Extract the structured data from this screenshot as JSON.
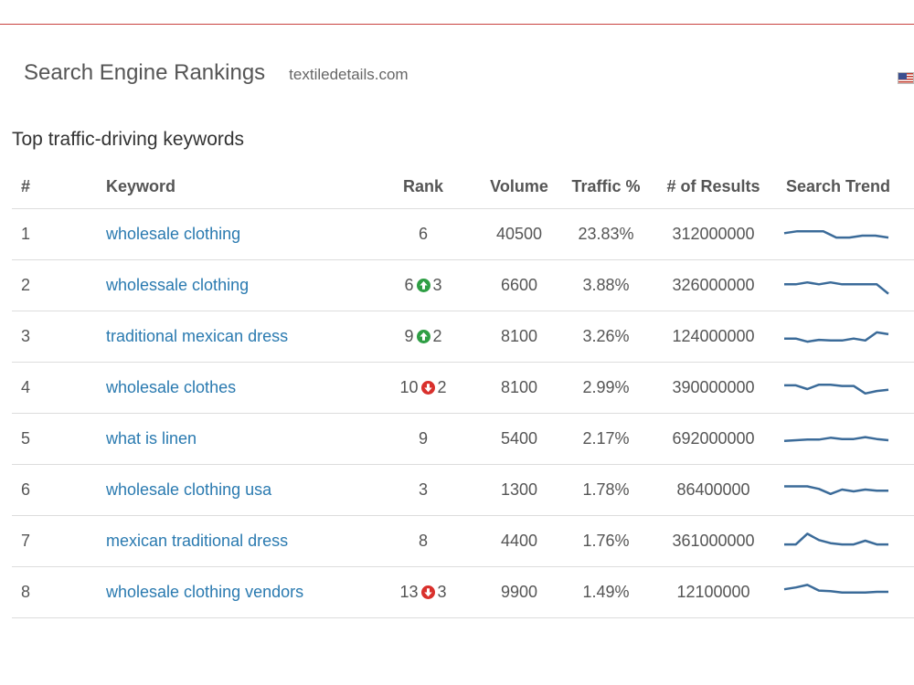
{
  "header": {
    "title": "Search Engine Rankings",
    "domain": "textiledetails.com",
    "flag_icon": "us-flag-icon"
  },
  "section_title": "Top traffic-driving keywords",
  "columns": {
    "num": "#",
    "keyword": "Keyword",
    "rank": "Rank",
    "volume": "Volume",
    "traffic": "Traffic %",
    "results": "# of Results",
    "trend": "Search Trend"
  },
  "colors": {
    "link": "#2a7ab0",
    "up": "#2e9e44",
    "down": "#d9302c",
    "sparkline": "#3b6b99",
    "top_rule": "#c9423f"
  },
  "rows": [
    {
      "num": "1",
      "keyword": "wholesale clothing",
      "rank": "6",
      "change_dir": "",
      "change": "",
      "volume": "40500",
      "traffic": "23.83%",
      "results": "312000000",
      "trend": [
        7,
        7.3,
        7.3,
        7.3,
        6.3,
        6.3,
        6.6,
        6.6,
        6.3
      ]
    },
    {
      "num": "2",
      "keyword": "wholessale clothing",
      "rank": "6",
      "change_dir": "up",
      "change": "3",
      "volume": "6600",
      "traffic": "3.88%",
      "results": "326000000",
      "trend": [
        7,
        7,
        7.3,
        7,
        7.3,
        7,
        7,
        7,
        7,
        5.5
      ]
    },
    {
      "num": "3",
      "keyword": "traditional mexican dress",
      "rank": "9",
      "change_dir": "up",
      "change": "2",
      "volume": "8100",
      "traffic": "3.26%",
      "results": "124000000",
      "trend": [
        6.5,
        6.5,
        6,
        6.3,
        6.2,
        6.2,
        6.5,
        6.2,
        7.5,
        7.2
      ]
    },
    {
      "num": "4",
      "keyword": "wholesale clothes",
      "rank": "10",
      "change_dir": "down",
      "change": "2",
      "volume": "8100",
      "traffic": "2.99%",
      "results": "390000000",
      "trend": [
        7.2,
        7.2,
        6.6,
        7.3,
        7.3,
        7.1,
        7.1,
        5.9,
        6.3,
        6.5
      ]
    },
    {
      "num": "5",
      "keyword": "what is linen",
      "rank": "9",
      "change_dir": "",
      "change": "",
      "volume": "5400",
      "traffic": "2.17%",
      "results": "692000000",
      "trend": [
        6.5,
        6.6,
        6.7,
        6.7,
        7,
        6.8,
        6.8,
        7.1,
        6.8,
        6.6
      ]
    },
    {
      "num": "6",
      "keyword": "wholesale clothing usa",
      "rank": "3",
      "change_dir": "",
      "change": "",
      "volume": "1300",
      "traffic": "1.78%",
      "results": "86400000",
      "trend": [
        7.4,
        7.4,
        7.4,
        7,
        6.2,
        6.9,
        6.6,
        6.9,
        6.7,
        6.7
      ]
    },
    {
      "num": "7",
      "keyword": "mexican traditional dress",
      "rank": "8",
      "change_dir": "",
      "change": "",
      "volume": "4400",
      "traffic": "1.76%",
      "results": "361000000",
      "trend": [
        6.3,
        6.3,
        8,
        7,
        6.5,
        6.3,
        6.3,
        6.9,
        6.3,
        6.3
      ]
    },
    {
      "num": "8",
      "keyword": "wholesale clothing vendors",
      "rank": "13",
      "change_dir": "down",
      "change": "3",
      "volume": "9900",
      "traffic": "1.49%",
      "results": "12100000",
      "trend": [
        7.3,
        7.6,
        8,
        7.1,
        7,
        6.8,
        6.8,
        6.8,
        6.9,
        6.9
      ]
    }
  ]
}
